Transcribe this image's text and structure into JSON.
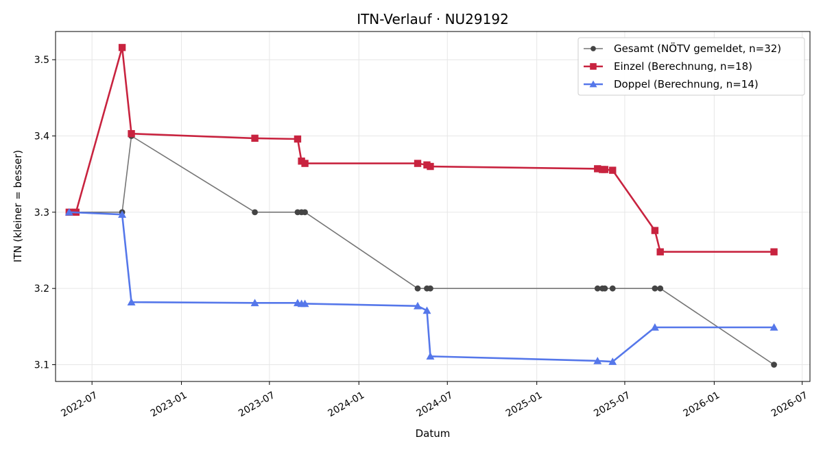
{
  "chart_data": {
    "type": "line",
    "title": "ITN-Verlauf · NU29192",
    "xlabel": "Datum",
    "ylabel": "ITN  (kleiner = besser)",
    "xlim": [
      "2022-04-17",
      "2026-07-17"
    ],
    "ylim": [
      3.078,
      3.537
    ],
    "x_ticks": [
      "2022-07",
      "2023-01",
      "2023-07",
      "2024-01",
      "2024-07",
      "2025-01",
      "2025-07",
      "2026-01",
      "2026-07"
    ],
    "y_ticks": [
      3.1,
      3.2,
      3.3,
      3.4,
      3.5
    ],
    "grid": true,
    "legend_position": "top-right",
    "series": [
      {
        "name": "Gesamt (NÖTV gemeldet, n=32)",
        "color": "#757575",
        "marker_color": "#444444",
        "marker": "circle",
        "line_width": 1.6,
        "x": [
          "2022-05-15",
          "2022-09-01",
          "2022-09-20",
          "2023-06-01",
          "2023-08-28",
          "2023-09-05",
          "2023-09-12",
          "2024-05-01",
          "2024-05-20",
          "2024-05-27",
          "2025-05-06",
          "2025-05-16",
          "2025-05-21",
          "2025-06-06",
          "2025-09-01",
          "2025-09-12",
          "2026-05-04"
        ],
        "y": [
          3.3,
          3.3,
          3.4,
          3.3,
          3.3,
          3.3,
          3.3,
          3.2,
          3.2,
          3.2,
          3.2,
          3.2,
          3.2,
          3.2,
          3.2,
          3.2,
          3.1
        ]
      },
      {
        "name": "Einzel (Berechnung, n=18)",
        "color": "#c8233f",
        "marker_color": "#c8233f",
        "marker": "square",
        "line_width": 2.6,
        "x": [
          "2022-05-15",
          "2022-05-29",
          "2022-09-01",
          "2022-09-20",
          "2023-06-01",
          "2023-08-28",
          "2023-09-05",
          "2023-09-12",
          "2024-05-01",
          "2024-05-20",
          "2024-05-27",
          "2025-05-06",
          "2025-05-16",
          "2025-05-21",
          "2025-06-06",
          "2025-09-01",
          "2025-09-12",
          "2026-05-04"
        ],
        "y": [
          3.3,
          3.3,
          3.516,
          3.403,
          3.397,
          3.396,
          3.367,
          3.364,
          3.364,
          3.362,
          3.36,
          3.357,
          3.356,
          3.356,
          3.355,
          3.276,
          3.248,
          3.248
        ]
      },
      {
        "name": "Doppel (Berechnung, n=14)",
        "color": "#5577ea",
        "marker_color": "#5577ea",
        "marker": "triangle",
        "line_width": 2.6,
        "x": [
          "2022-05-15",
          "2022-09-01",
          "2022-09-20",
          "2023-06-01",
          "2023-08-28",
          "2023-09-05",
          "2023-09-12",
          "2024-05-01",
          "2024-05-20",
          "2024-05-27",
          "2025-05-06",
          "2025-06-06",
          "2025-09-01",
          "2026-05-04"
        ],
        "y": [
          3.3,
          3.297,
          3.182,
          3.181,
          3.181,
          3.18,
          3.18,
          3.177,
          3.171,
          3.111,
          3.105,
          3.104,
          3.149,
          3.149
        ]
      }
    ]
  }
}
